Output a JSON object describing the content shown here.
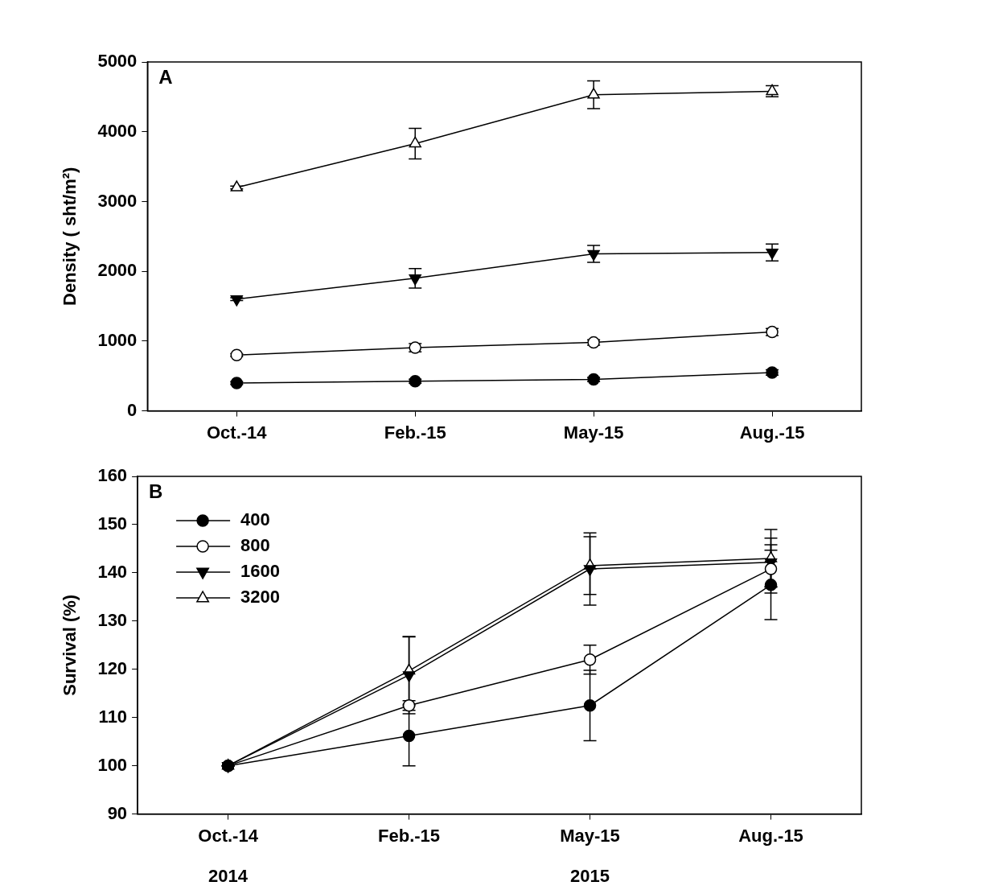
{
  "chart_data": [
    {
      "type": "line",
      "title": "A",
      "categories": [
        "Oct.-14",
        "Feb.-15",
        "May-15",
        "Aug.-15"
      ],
      "ylabel": "Density ( sht/m²)",
      "ylim": [
        0,
        5000
      ],
      "yticks": [
        0,
        1000,
        2000,
        3000,
        4000,
        5000
      ],
      "grid": false,
      "series": [
        {
          "color": "#000000",
          "marker": "circle",
          "values": [
            400,
            425,
            450,
            550
          ],
          "errors": [
            20,
            30,
            30,
            40
          ]
        },
        {
          "color": "#000000",
          "marker": "circle_open",
          "values": [
            800,
            905,
            980,
            1130
          ],
          "errors": [
            20,
            60,
            40,
            50
          ]
        },
        {
          "color": "#000000",
          "marker": "triangle_down",
          "values": [
            1600,
            1900,
            2250,
            2270
          ],
          "errors": [
            20,
            140,
            120,
            120
          ]
        },
        {
          "color": "#000000",
          "marker": "triangle_open",
          "values": [
            3200,
            3830,
            4530,
            4580
          ],
          "errors": [
            20,
            220,
            200,
            80
          ]
        }
      ]
    },
    {
      "type": "line",
      "title": "B",
      "categories": [
        "Oct.-14",
        "Feb.-15",
        "May-15",
        "Aug.-15"
      ],
      "ylabel": "Survival (%)",
      "ylim": [
        90,
        160
      ],
      "yticks": [
        90,
        100,
        110,
        120,
        130,
        140,
        150,
        160
      ],
      "grid": false,
      "legend": "upper left",
      "annotations": [
        {
          "text": "2014",
          "x": "Oct.-14"
        },
        {
          "text": "2015",
          "x": "May-15"
        }
      ],
      "series": [
        {
          "name": "400",
          "color": "#000000",
          "marker": "circle",
          "values": [
            100,
            106.2,
            112.5,
            137.5
          ],
          "errors": [
            0,
            6.2,
            7.3,
            7.2
          ]
        },
        {
          "name": "800",
          "color": "#000000",
          "marker": "circle_open",
          "values": [
            100,
            112.5,
            122,
            140.8
          ],
          "errors": [
            0,
            1,
            3,
            5
          ]
        },
        {
          "name": "1600",
          "color": "#000000",
          "marker": "triangle_down",
          "values": [
            100,
            118.8,
            140.8,
            142.2
          ],
          "errors": [
            0,
            8,
            7.5,
            5
          ]
        },
        {
          "name": "3200",
          "color": "#000000",
          "marker": "triangle_open",
          "values": [
            100,
            119.7,
            141.5,
            143
          ],
          "errors": [
            0,
            7,
            6,
            6
          ]
        }
      ]
    }
  ]
}
